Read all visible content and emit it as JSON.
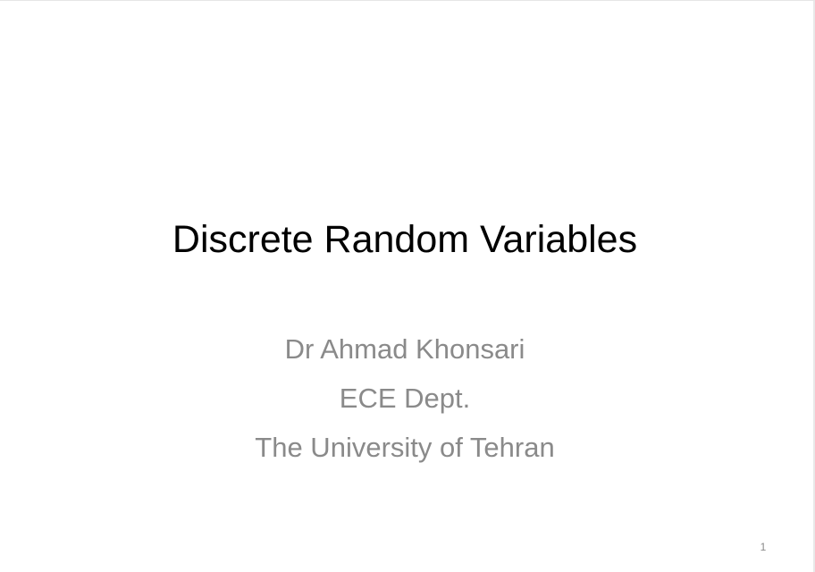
{
  "slide": {
    "title": "Discrete Random Variables",
    "subtitle_lines": [
      "Dr Ahmad Khonsari",
      "ECE Dept.",
      "The University of Tehran"
    ],
    "page_number": "1"
  },
  "colors": {
    "background": "#ffffff",
    "title": "#000000",
    "subtitle": "#8a8a8a"
  }
}
